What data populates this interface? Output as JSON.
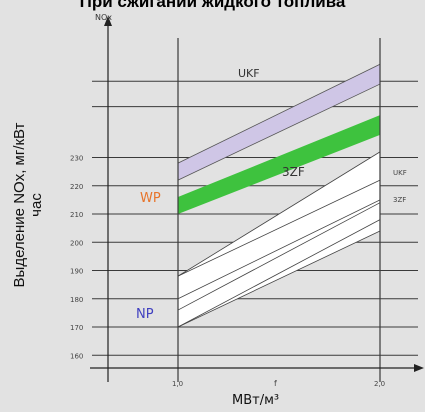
{
  "title": "При сжигании жидкого топлива",
  "chart_data": {
    "type": "area",
    "title": "При сжигании жидкого топлива",
    "y_axis_name": "NOx",
    "ylabel": "Выделение NOх, мг/кВт час",
    "xlabel": "МВт/м³",
    "x_axis_marker": "f",
    "x_ticks": [
      "1,0",
      "2,0"
    ],
    "y_ticks": [
      160,
      170,
      180,
      190,
      200,
      210,
      220,
      230
    ],
    "x_range": [
      0,
      2.2
    ],
    "y_range": [
      152,
      268
    ],
    "grid": true,
    "series": [
      {
        "name": "UKF",
        "color": "#cfc6e6",
        "label_color": "#333333",
        "x": [
          1.0,
          2.0
        ],
        "upper": [
          228,
          263
        ],
        "lower": [
          222,
          256
        ]
      },
      {
        "name": "WP",
        "color": "#3ec23e",
        "label_color": "#e8742a",
        "x": [
          1.0,
          2.0
        ],
        "upper": [
          216,
          245
        ],
        "lower": [
          210,
          238
        ]
      },
      {
        "name": "3ZF",
        "color": "#ffffff",
        "label_color": "#333333",
        "x": [
          1.0,
          2.0
        ],
        "upper": [
          188,
          232
        ],
        "lower": [
          170,
          210
        ]
      },
      {
        "name": "NP",
        "color": "#ffffff",
        "label_color": "#4040c0",
        "x": [
          1.0,
          2.0
        ],
        "upper": [
          180,
          215
        ],
        "lower": [
          170,
          204
        ]
      }
    ],
    "right_annotations": [
      {
        "text": "UKF",
        "y": 224
      },
      {
        "text": "3ZF",
        "y": 215
      }
    ]
  }
}
